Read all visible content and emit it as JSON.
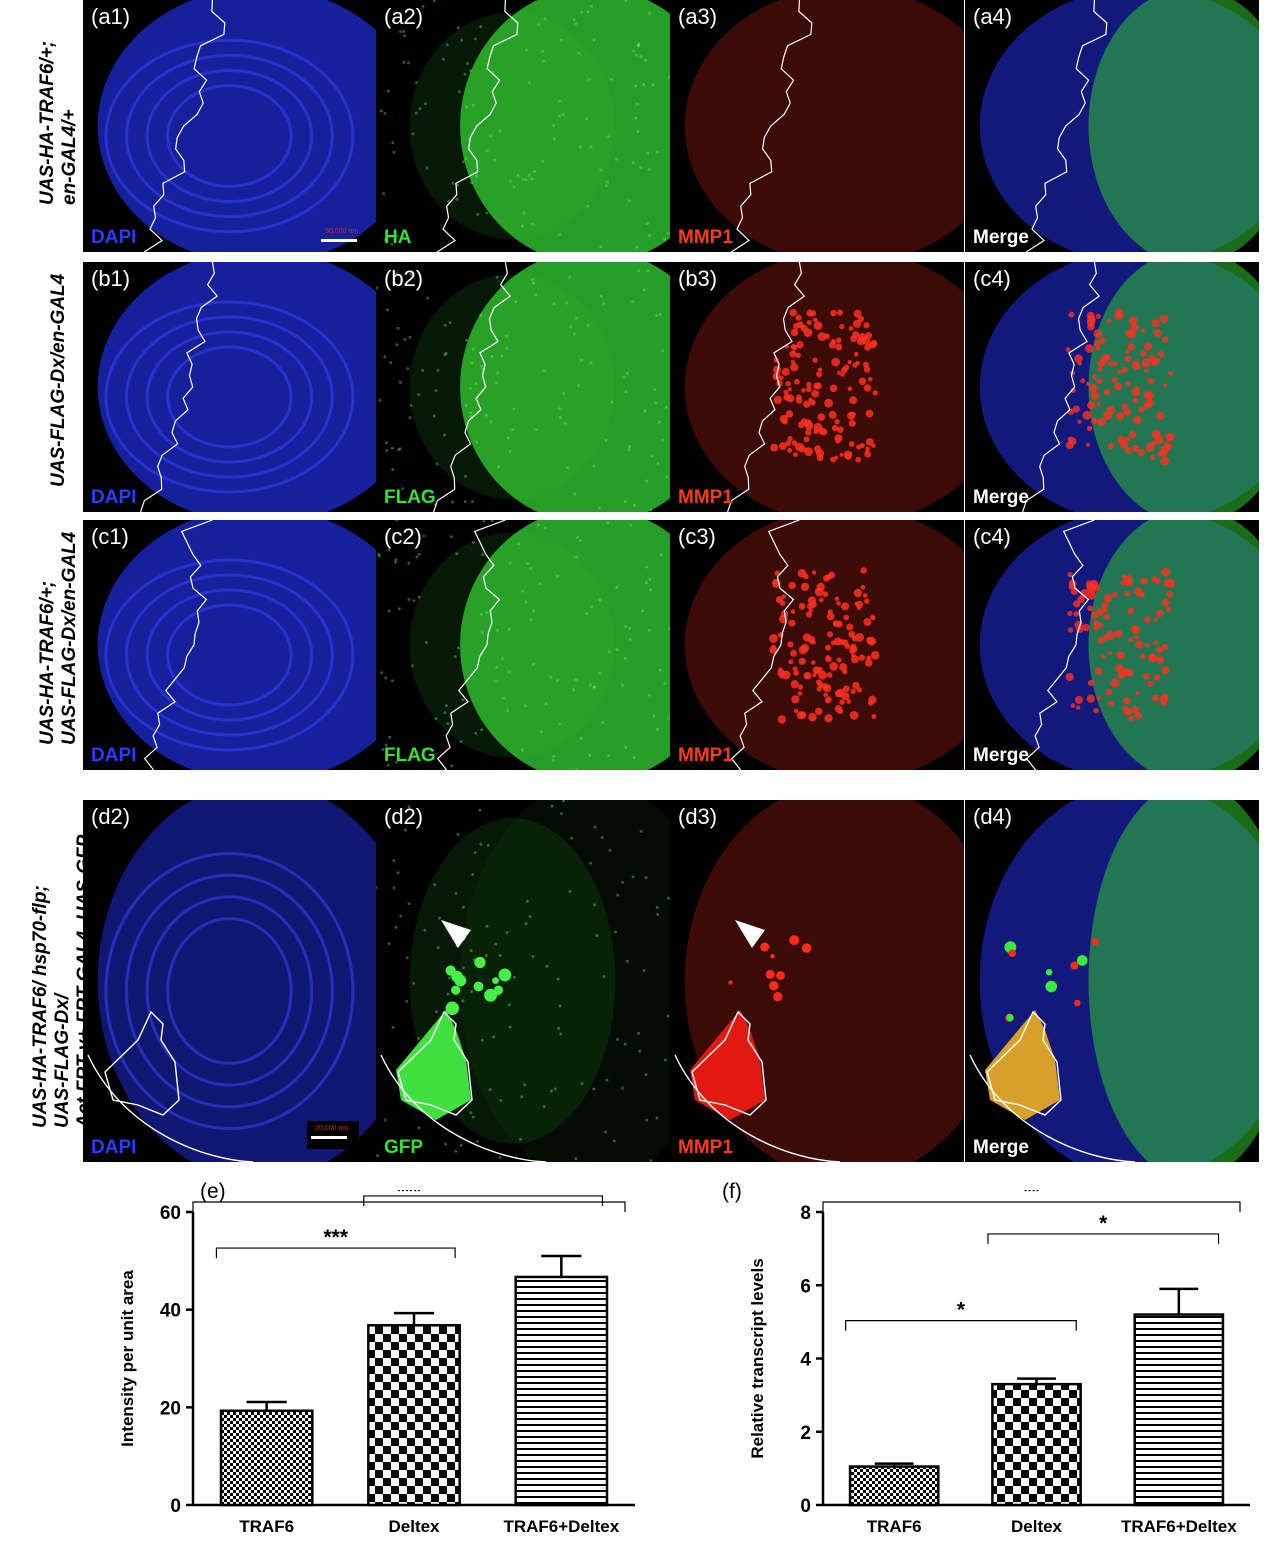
{
  "rows": [
    {
      "label_lines": [
        "UAS-HA-TRAF6/+;",
        "en-GAL4/+"
      ],
      "panels": [
        {
          "id": "(a1)",
          "channel": "DAPI",
          "color": "#2b3bff"
        },
        {
          "id": "(a2)",
          "channel": "HA",
          "color": "#35e035"
        },
        {
          "id": "(a3)",
          "channel": "MMP1",
          "color": "#ff3a1a"
        },
        {
          "id": "(a4)",
          "channel": "Merge",
          "color": "#ffffff"
        }
      ],
      "scale_bar": "50,000 nm"
    },
    {
      "label_lines": [
        "UAS-FLAG-Dx/en-GAL4"
      ],
      "panels": [
        {
          "id": "(b1)",
          "channel": "DAPI",
          "color": "#2b3bff"
        },
        {
          "id": "(b2)",
          "channel": "FLAG",
          "color": "#35e035"
        },
        {
          "id": "(b3)",
          "channel": "MMP1",
          "color": "#ff3a1a"
        },
        {
          "id": "(c4)",
          "channel": "Merge",
          "color": "#ffffff"
        }
      ]
    },
    {
      "label_lines": [
        "UAS-HA-TRAF6/+;",
        "UAS-FLAG-Dx/en-GAL4"
      ],
      "panels": [
        {
          "id": "(c1)",
          "channel": "DAPI",
          "color": "#2b3bff"
        },
        {
          "id": "(c2)",
          "channel": "FLAG",
          "color": "#35e035"
        },
        {
          "id": "(c3)",
          "channel": "MMP1",
          "color": "#ff3a1a"
        },
        {
          "id": "(c4)",
          "channel": "Merge",
          "color": "#ffffff"
        }
      ]
    },
    {
      "label_lines": [
        "UAS-HA-TRAF6/ hsp70-flp;",
        "UAS-FLAG-Dx/",
        "Act FRT y+ FRT GAL4, UAS-GFP"
      ],
      "panels": [
        {
          "id": "(d2)",
          "channel": "DAPI",
          "color": "#2b3bff"
        },
        {
          "id": "(d2)",
          "channel": "GFP",
          "color": "#35e035"
        },
        {
          "id": "(d3)",
          "channel": "MMP1",
          "color": "#ff3a1a"
        },
        {
          "id": "(d4)",
          "channel": "Merge",
          "color": "#ffffff"
        }
      ],
      "scale_bar": "20,000 nm"
    }
  ],
  "chart_data": [
    {
      "panel": "(e)",
      "type": "bar",
      "categories": [
        "TRAF6",
        "Deltex",
        "TRAF6+Deltex"
      ],
      "values": [
        19.3,
        36.8,
        46.7
      ],
      "errors": [
        1.8,
        2.5,
        4.3
      ],
      "patterns": [
        "fine-check",
        "checkerboard",
        "horizontal-stripes"
      ],
      "ylabel": "Intensity per unit area",
      "ylim": [
        0,
        60
      ],
      "yticks": [
        0,
        20,
        40,
        60
      ],
      "significance": [
        {
          "from": 0,
          "to": 1,
          "label": "***"
        },
        {
          "from": 1,
          "to": 2,
          "label": "***"
        },
        {
          "from": 0,
          "to": 2,
          "label": "***"
        }
      ]
    },
    {
      "panel": "(f)",
      "type": "bar",
      "categories": [
        "TRAF6",
        "Deltex",
        "TRAF6+Deltex"
      ],
      "values": [
        1.05,
        3.3,
        5.2
      ],
      "errors": [
        0.08,
        0.15,
        0.7
      ],
      "patterns": [
        "fine-check",
        "checkerboard",
        "horizontal-stripes"
      ],
      "ylabel": "Relative transcript levels",
      "ylim": [
        0,
        8
      ],
      "yticks": [
        0,
        2,
        4,
        6,
        8
      ],
      "significance": [
        {
          "from": 0,
          "to": 1,
          "label": "*"
        },
        {
          "from": 1,
          "to": 2,
          "label": "*"
        },
        {
          "from": 0,
          "to": 2,
          "label": "**"
        }
      ]
    }
  ]
}
